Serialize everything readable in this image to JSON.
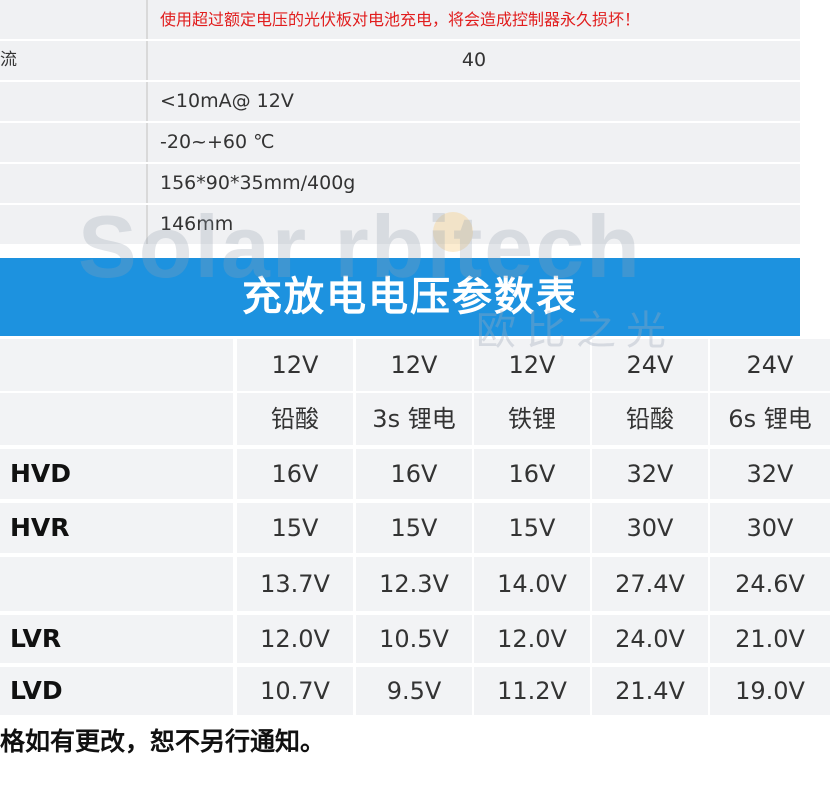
{
  "spec_rows": [
    {
      "label": "",
      "value": "使用超过额定电压的光伏板对电池充电，将会造成控制器永久损坏！"
    },
    {
      "label": "流",
      "value": "40"
    },
    {
      "label": "",
      "value": "<10mA@ 12V"
    },
    {
      "label": "",
      "value": "-20~+60 ℃"
    },
    {
      "label": "",
      "value": "156*90*35mm/400g"
    },
    {
      "label": "",
      "value": "146mm"
    }
  ],
  "watermark": {
    "brand": "Solar  rbitech",
    "chinese": "欧比之光"
  },
  "banner": {
    "title": "充放电电压参数表"
  },
  "param_table": {
    "voltage_row": {
      "label": "",
      "values": [
        "12V",
        "12V",
        "12V",
        "24V",
        "24V"
      ]
    },
    "type_row": {
      "label": "",
      "values": [
        "铅酸",
        "3s 锂电",
        "铁锂",
        "铅酸",
        "6s 锂电"
      ]
    },
    "rows": [
      {
        "label": "HVD",
        "values": [
          "16V",
          "16V",
          "16V",
          "32V",
          "32V"
        ]
      },
      {
        "label": "HVR",
        "values": [
          "15V",
          "15V",
          "15V",
          "30V",
          "30V"
        ]
      },
      {
        "label": "",
        "values": [
          "13.7V",
          "12.3V",
          "14.0V",
          "27.4V",
          "24.6V"
        ]
      },
      {
        "label": "LVR",
        "values": [
          "12.0V",
          "10.5V",
          "12.0V",
          "24.0V",
          "21.0V"
        ]
      },
      {
        "label": "LVD",
        "values": [
          "10.7V",
          "9.5V",
          "11.2V",
          "21.4V",
          "19.0V"
        ]
      }
    ]
  },
  "footer": {
    "text": "格如有更改，恕不另行通知。"
  }
}
